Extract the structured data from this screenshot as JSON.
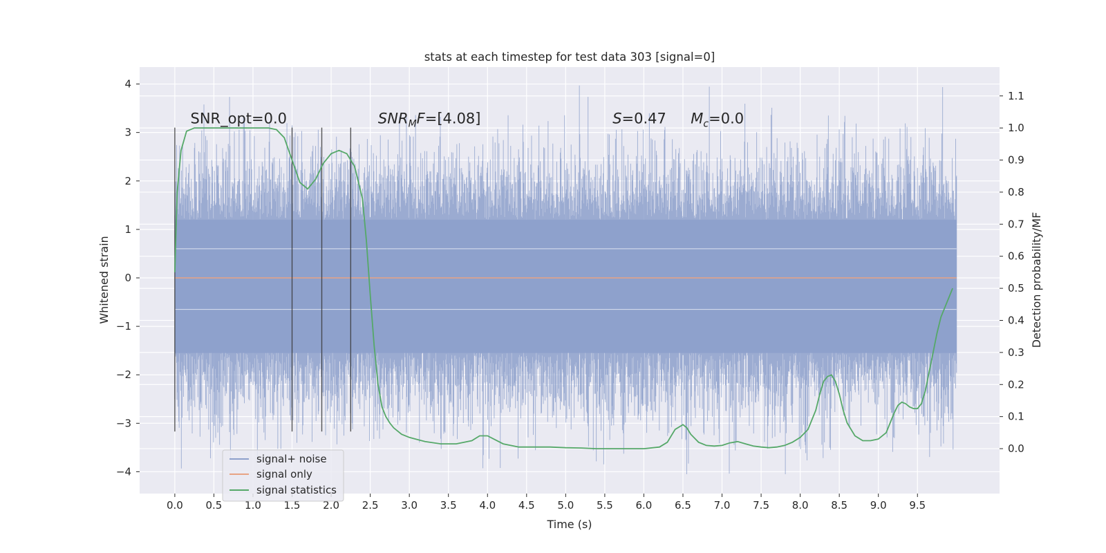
{
  "chart_data": {
    "type": "line",
    "title": "stats at each timestep for test data 303 [signal=0]",
    "xlabel": "Time (s)",
    "ylabel": "Whitened strain",
    "y2label": "Detection probability/MF",
    "xlim": [
      -0.45,
      10.55
    ],
    "ylim": [
      -4.45,
      4.35
    ],
    "y2lim": [
      -0.14,
      1.19
    ],
    "xticks": [
      0.0,
      0.5,
      1.0,
      1.5,
      2.0,
      2.5,
      3.0,
      3.5,
      4.0,
      4.5,
      5.0,
      5.5,
      6.0,
      6.5,
      7.0,
      7.5,
      8.0,
      8.5,
      9.0,
      9.5
    ],
    "xtick_labels": [
      "0.0",
      "0.5",
      "1.0",
      "1.5",
      "2.0",
      "2.5",
      "3.0",
      "3.5",
      "4.0",
      "4.5",
      "5.0",
      "5.5",
      "6.0",
      "6.5",
      "7.0",
      "7.5",
      "8.0",
      "8.5",
      "9.0",
      "9.5"
    ],
    "yticks": [
      4,
      3,
      2,
      1,
      0,
      -1,
      -2,
      -3,
      -4
    ],
    "ytick_labels": [
      "4",
      "3",
      "2",
      "1",
      "0",
      "−1",
      "−2",
      "−3",
      "−4"
    ],
    "y2ticks": [
      1.1,
      1.0,
      0.9,
      0.8,
      0.7,
      0.6,
      0.5,
      0.4,
      0.3,
      0.2,
      0.1,
      0.0
    ],
    "y2tick_labels": [
      "1.1",
      "1.0",
      "0.9",
      "0.8",
      "0.7",
      "0.6",
      "0.5",
      "0.4",
      "0.3",
      "0.2",
      "0.1",
      "0.0"
    ],
    "grid": true,
    "legend_position": "lower-left",
    "series": [
      {
        "name": "signal+ noise",
        "axis": "left",
        "color": "#8da0cb",
        "description_range": [
          -4.05,
          3.97
        ],
        "x_range": [
          0.0,
          10.0
        ]
      },
      {
        "name": "signal only",
        "axis": "left",
        "color": "#e8a383",
        "x": [
          0.0,
          10.0
        ],
        "y": [
          0.0,
          0.0
        ]
      },
      {
        "name": "signal statistics",
        "axis": "right",
        "color": "#55a868",
        "x": [
          0.0,
          0.03,
          0.08,
          0.15,
          0.25,
          0.4,
          0.6,
          0.8,
          1.0,
          1.2,
          1.3,
          1.4,
          1.5,
          1.6,
          1.7,
          1.8,
          1.9,
          2.0,
          2.1,
          2.2,
          2.3,
          2.4,
          2.45,
          2.5,
          2.55,
          2.6,
          2.65,
          2.7,
          2.75,
          2.8,
          2.9,
          3.0,
          3.2,
          3.4,
          3.6,
          3.8,
          3.9,
          4.0,
          4.2,
          4.4,
          4.6,
          4.8,
          5.0,
          5.2,
          5.4,
          5.6,
          5.8,
          6.0,
          6.2,
          6.3,
          6.4,
          6.5,
          6.55,
          6.6,
          6.7,
          6.8,
          6.9,
          7.0,
          7.1,
          7.2,
          7.3,
          7.4,
          7.5,
          7.6,
          7.7,
          7.8,
          7.9,
          8.0,
          8.1,
          8.2,
          8.25,
          8.3,
          8.35,
          8.4,
          8.45,
          8.5,
          8.55,
          8.6,
          8.7,
          8.8,
          8.9,
          9.0,
          9.1,
          9.15,
          9.2,
          9.25,
          9.3,
          9.35,
          9.4,
          9.45,
          9.5,
          9.55,
          9.6,
          9.65,
          9.7,
          9.75,
          9.8,
          9.85,
          9.9,
          9.95
        ],
        "y": [
          0.55,
          0.8,
          0.93,
          0.99,
          1.0,
          1.0,
          1.0,
          1.0,
          1.0,
          1.0,
          0.995,
          0.97,
          0.9,
          0.83,
          0.81,
          0.84,
          0.89,
          0.92,
          0.93,
          0.92,
          0.88,
          0.78,
          0.65,
          0.48,
          0.32,
          0.2,
          0.13,
          0.1,
          0.08,
          0.065,
          0.045,
          0.035,
          0.022,
          0.015,
          0.015,
          0.025,
          0.04,
          0.04,
          0.015,
          0.005,
          0.005,
          0.005,
          0.003,
          0.002,
          0.0,
          0.0,
          0.0,
          0.0,
          0.005,
          0.02,
          0.06,
          0.075,
          0.065,
          0.045,
          0.02,
          0.01,
          0.008,
          0.01,
          0.018,
          0.022,
          0.015,
          0.008,
          0.005,
          0.003,
          0.005,
          0.01,
          0.02,
          0.035,
          0.06,
          0.12,
          0.17,
          0.21,
          0.225,
          0.23,
          0.21,
          0.17,
          0.12,
          0.08,
          0.04,
          0.025,
          0.025,
          0.03,
          0.05,
          0.08,
          0.11,
          0.135,
          0.145,
          0.14,
          0.13,
          0.125,
          0.125,
          0.14,
          0.18,
          0.24,
          0.3,
          0.36,
          0.41,
          0.44,
          0.47,
          0.5
        ]
      }
    ],
    "vlines": [
      0.0,
      1.5,
      1.88,
      2.25
    ],
    "vline_range": [
      -3.17,
      3.1
    ],
    "annotations": [
      {
        "id": "snr-opt",
        "text": "SNR_opt=0.0",
        "x": 0.2,
        "y": 3.1
      },
      {
        "id": "snr-mf",
        "text": "SNRMF=[4.08]",
        "x": 2.6,
        "y": 3.1
      },
      {
        "id": "s-value",
        "text": "S=0.47",
        "x": 5.6,
        "y": 3.1
      },
      {
        "id": "mc-value",
        "text": "Mc=0.0",
        "x": 6.6,
        "y": 3.1
      }
    ]
  }
}
